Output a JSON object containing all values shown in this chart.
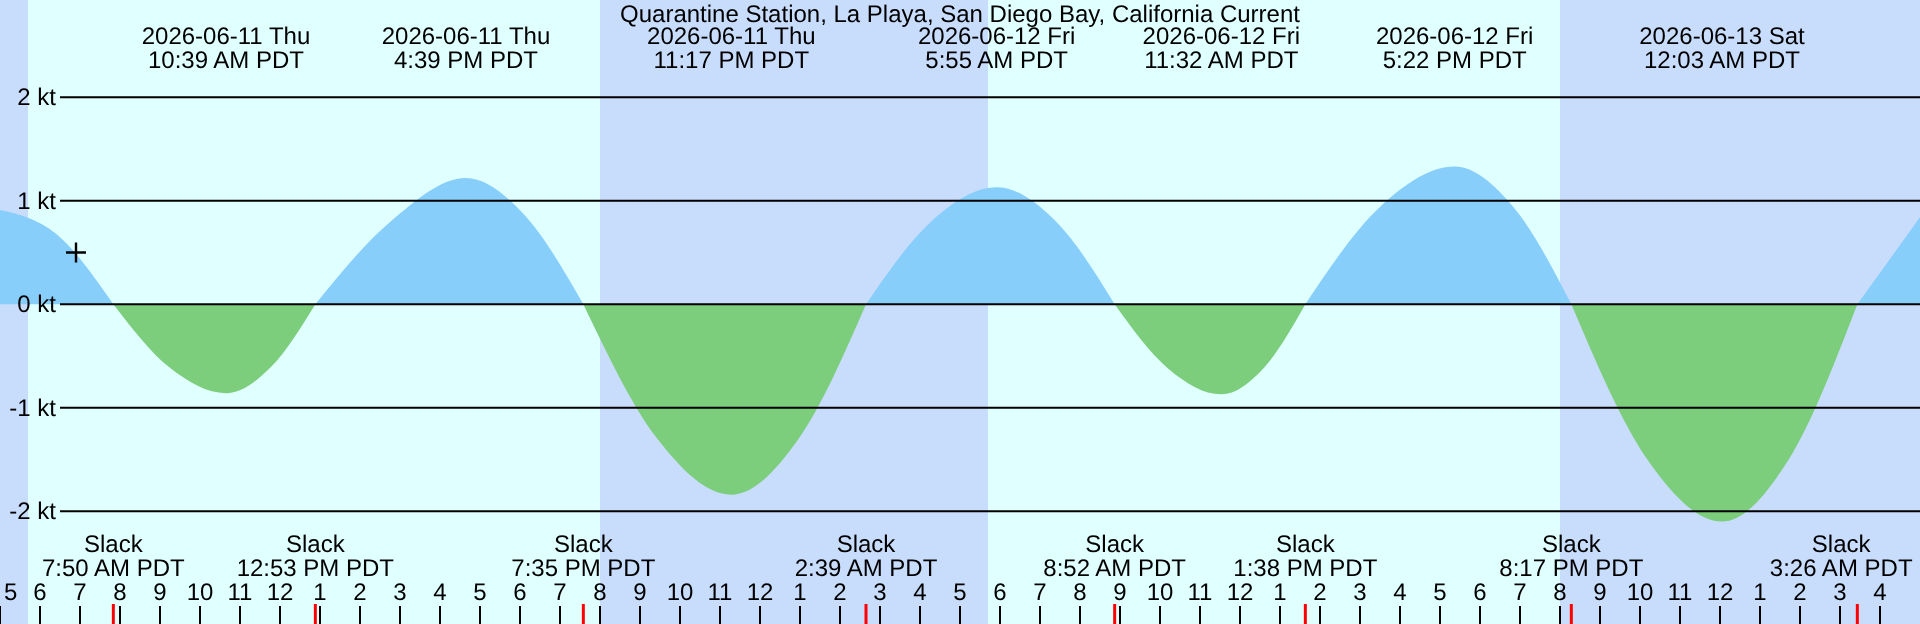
{
  "chart_data": {
    "type": "area",
    "title": "Quarantine Station, La Playa, San Diego Bay, California Current",
    "x": [
      "2026-06-11T05:00",
      "2026-06-11T06:24",
      "2026-06-11T07:50",
      "2026-06-11T09:14",
      "2026-06-11T10:39",
      "2026-06-11T11:46",
      "2026-06-11T12:53",
      "2026-06-11T14:46",
      "2026-06-11T16:39",
      "2026-06-11T18:07",
      "2026-06-11T19:35",
      "2026-06-11T21:26",
      "2026-06-11T23:17",
      "2026-06-12T00:58",
      "2026-06-12T02:39",
      "2026-06-12T04:17",
      "2026-06-12T05:55",
      "2026-06-12T07:24",
      "2026-06-12T08:52",
      "2026-06-12T10:12",
      "2026-06-12T11:32",
      "2026-06-12T12:35",
      "2026-06-12T13:38",
      "2026-06-12T15:30",
      "2026-06-12T17:22",
      "2026-06-12T18:50",
      "2026-06-12T20:17",
      "2026-06-12T22:10",
      "2026-06-13T00:03",
      "2026-06-13T01:44",
      "2026-06-13T03:26",
      "2026-06-13T05:00"
    ],
    "series": [
      {
        "color": "#87cefa",
        "values": [
          0.91,
          0.68,
          0,
          null,
          null,
          null,
          0,
          0.8,
          1.22,
          0.86,
          0,
          null,
          null,
          null,
          0,
          0.8,
          1.13,
          0.8,
          0,
          null,
          null,
          null,
          0,
          0.94,
          1.33,
          0.94,
          0,
          null,
          null,
          null,
          0,
          0.84
        ]
      },
      {
        "color": "#7ccd7c",
        "values": [
          null,
          null,
          0,
          -0.61,
          -0.86,
          -0.61,
          0,
          null,
          null,
          null,
          0,
          -1.3,
          -1.84,
          -1.3,
          0,
          null,
          null,
          null,
          0,
          -0.62,
          -0.87,
          -0.62,
          0,
          null,
          null,
          null,
          0,
          -1.49,
          -2.1,
          -1.49,
          0,
          null
        ]
      },
      {
        "type": "scatter",
        "marker": "cross",
        "color": "#000000",
        "x": [
          "2026-06-11T06:54"
        ],
        "values": [
          0.5
        ]
      }
    ],
    "xlim": [
      "2026-06-11T05:00",
      "2026-06-13T05:00"
    ],
    "ylim": [
      -3.09,
      2.94
    ],
    "yticks": [
      {
        "value": 2,
        "label": "2 kt"
      },
      {
        "value": 1,
        "label": "1 kt"
      },
      {
        "value": 0,
        "label": "0 kt"
      },
      {
        "value": -1,
        "label": "-1 kt"
      },
      {
        "value": -2,
        "label": "-2 kt"
      }
    ],
    "xticks": [
      {
        "value": "2026-06-11T05:00",
        "label": "5"
      },
      {
        "value": "2026-06-11T06:00",
        "label": "6"
      },
      {
        "value": "2026-06-11T07:00",
        "label": "7"
      },
      {
        "value": "2026-06-11T08:00",
        "label": "8"
      },
      {
        "value": "2026-06-11T09:00",
        "label": "9"
      },
      {
        "value": "2026-06-11T10:00",
        "label": "10"
      },
      {
        "value": "2026-06-11T11:00",
        "label": "11"
      },
      {
        "value": "2026-06-11T12:00",
        "label": "12"
      },
      {
        "value": "2026-06-11T13:00",
        "label": "1"
      },
      {
        "value": "2026-06-11T14:00",
        "label": "2"
      },
      {
        "value": "2026-06-11T15:00",
        "label": "3"
      },
      {
        "value": "2026-06-11T16:00",
        "label": "4"
      },
      {
        "value": "2026-06-11T17:00",
        "label": "5"
      },
      {
        "value": "2026-06-11T18:00",
        "label": "6"
      },
      {
        "value": "2026-06-11T19:00",
        "label": "7"
      },
      {
        "value": "2026-06-11T20:00",
        "label": "8"
      },
      {
        "value": "2026-06-11T21:00",
        "label": "9"
      },
      {
        "value": "2026-06-11T22:00",
        "label": "10"
      },
      {
        "value": "2026-06-11T23:00",
        "label": "11"
      },
      {
        "value": "2026-06-12T00:00",
        "label": "12"
      },
      {
        "value": "2026-06-12T01:00",
        "label": "1"
      },
      {
        "value": "2026-06-12T02:00",
        "label": "2"
      },
      {
        "value": "2026-06-12T03:00",
        "label": "3"
      },
      {
        "value": "2026-06-12T04:00",
        "label": "4"
      },
      {
        "value": "2026-06-12T05:00",
        "label": "5"
      },
      {
        "value": "2026-06-12T06:00",
        "label": "6"
      },
      {
        "value": "2026-06-12T07:00",
        "label": "7"
      },
      {
        "value": "2026-06-12T08:00",
        "label": "8"
      },
      {
        "value": "2026-06-12T09:00",
        "label": "9"
      },
      {
        "value": "2026-06-12T10:00",
        "label": "10"
      },
      {
        "value": "2026-06-12T11:00",
        "label": "11"
      },
      {
        "value": "2026-06-12T12:00",
        "label": "12"
      },
      {
        "value": "2026-06-12T13:00",
        "label": "1"
      },
      {
        "value": "2026-06-12T14:00",
        "label": "2"
      },
      {
        "value": "2026-06-12T15:00",
        "label": "3"
      },
      {
        "value": "2026-06-12T16:00",
        "label": "4"
      },
      {
        "value": "2026-06-12T17:00",
        "label": "5"
      },
      {
        "value": "2026-06-12T18:00",
        "label": "6"
      },
      {
        "value": "2026-06-12T19:00",
        "label": "7"
      },
      {
        "value": "2026-06-12T20:00",
        "label": "8"
      },
      {
        "value": "2026-06-12T21:00",
        "label": "9"
      },
      {
        "value": "2026-06-12T22:00",
        "label": "10"
      },
      {
        "value": "2026-06-12T23:00",
        "label": "11"
      },
      {
        "value": "2026-06-13T00:00",
        "label": "12"
      },
      {
        "value": "2026-06-13T01:00",
        "label": "1"
      },
      {
        "value": "2026-06-13T02:00",
        "label": "2"
      },
      {
        "value": "2026-06-13T03:00",
        "label": "3"
      },
      {
        "value": "2026-06-13T04:00",
        "label": "4"
      }
    ],
    "grid": "y",
    "bands": [
      {
        "axis": "x",
        "from": "2026-06-11T05:00",
        "to": "2026-06-11T05:42",
        "color": "#c8dcfc"
      },
      {
        "axis": "x",
        "from": "2026-06-11T20:00",
        "to": "2026-06-12T05:42",
        "color": "#c8dcfc"
      },
      {
        "axis": "x",
        "from": "2026-06-12T20:00",
        "to": "2026-06-13T05:00",
        "color": "#c8dcfc"
      }
    ],
    "annotations": [
      "Slack\n7:50 AM PDT",
      "2026-06-11 Thu\n10:39 AM PDT",
      "Slack\n12:53 PM PDT",
      "2026-06-11 Thu\n4:39 PM PDT",
      "Slack\n7:35 PM PDT",
      "2026-06-11 Thu\n11:17 PM PDT",
      "Slack\n2:39 AM PDT",
      "2026-06-12 Fri\n5:55 AM PDT",
      "Slack\n8:52 AM PDT",
      "2026-06-12 Fri\n11:32 AM PDT",
      "Slack\n1:38 PM PDT",
      "2026-06-12 Fri\n5:22 PM PDT",
      "Slack\n8:17 PM PDT",
      "2026-06-13 Sat\n12:03 AM PDT",
      "Slack\n3:26 AM PDT"
    ]
  }
}
